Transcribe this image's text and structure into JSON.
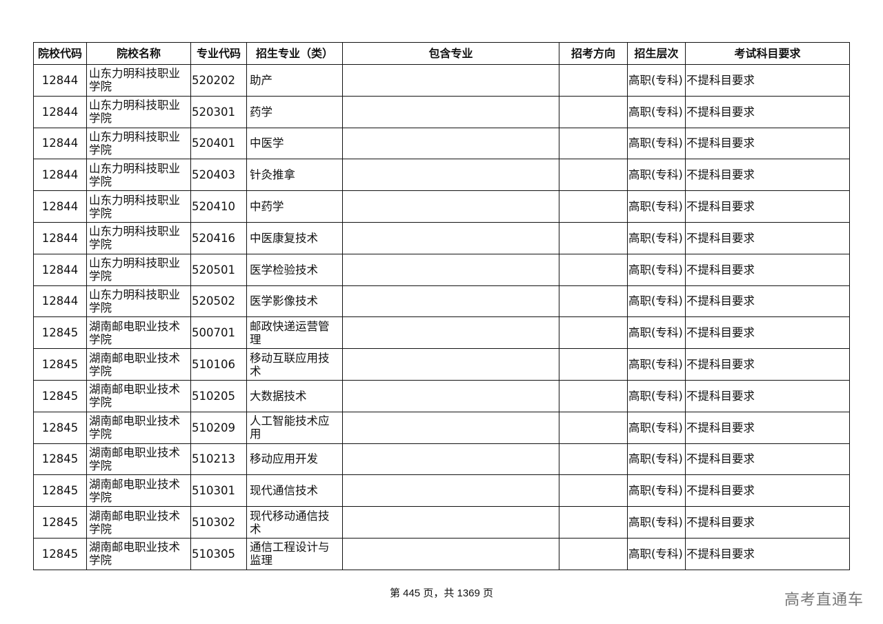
{
  "table": {
    "headers": [
      "院校代码",
      "院校名称",
      "专业代码",
      "招生专业（类）",
      "包含专业",
      "招考方向",
      "招生层次",
      "考试科目要求"
    ],
    "rows": [
      [
        "12844",
        "山东力明科技职业学院",
        "520202",
        "助产",
        "",
        "",
        "高职(专科)",
        "不提科目要求"
      ],
      [
        "12844",
        "山东力明科技职业学院",
        "520301",
        "药学",
        "",
        "",
        "高职(专科)",
        "不提科目要求"
      ],
      [
        "12844",
        "山东力明科技职业学院",
        "520401",
        "中医学",
        "",
        "",
        "高职(专科)",
        "不提科目要求"
      ],
      [
        "12844",
        "山东力明科技职业学院",
        "520403",
        "针灸推拿",
        "",
        "",
        "高职(专科)",
        "不提科目要求"
      ],
      [
        "12844",
        "山东力明科技职业学院",
        "520410",
        "中药学",
        "",
        "",
        "高职(专科)",
        "不提科目要求"
      ],
      [
        "12844",
        "山东力明科技职业学院",
        "520416",
        "中医康复技术",
        "",
        "",
        "高职(专科)",
        "不提科目要求"
      ],
      [
        "12844",
        "山东力明科技职业学院",
        "520501",
        "医学检验技术",
        "",
        "",
        "高职(专科)",
        "不提科目要求"
      ],
      [
        "12844",
        "山东力明科技职业学院",
        "520502",
        "医学影像技术",
        "",
        "",
        "高职(专科)",
        "不提科目要求"
      ],
      [
        "12845",
        "湖南邮电职业技术学院",
        "500701",
        "邮政快递运营管理",
        "",
        "",
        "高职(专科)",
        "不提科目要求"
      ],
      [
        "12845",
        "湖南邮电职业技术学院",
        "510106",
        "移动互联应用技术",
        "",
        "",
        "高职(专科)",
        "不提科目要求"
      ],
      [
        "12845",
        "湖南邮电职业技术学院",
        "510205",
        "大数据技术",
        "",
        "",
        "高职(专科)",
        "不提科目要求"
      ],
      [
        "12845",
        "湖南邮电职业技术学院",
        "510209",
        "人工智能技术应用",
        "",
        "",
        "高职(专科)",
        "不提科目要求"
      ],
      [
        "12845",
        "湖南邮电职业技术学院",
        "510213",
        "移动应用开发",
        "",
        "",
        "高职(专科)",
        "不提科目要求"
      ],
      [
        "12845",
        "湖南邮电职业技术学院",
        "510301",
        "现代通信技术",
        "",
        "",
        "高职(专科)",
        "不提科目要求"
      ],
      [
        "12845",
        "湖南邮电职业技术学院",
        "510302",
        "现代移动通信技术",
        "",
        "",
        "高职(专科)",
        "不提科目要求"
      ],
      [
        "12845",
        "湖南邮电职业技术学院",
        "510305",
        "通信工程设计与监理",
        "",
        "",
        "高职(专科)",
        "不提科目要求"
      ]
    ]
  },
  "footer": {
    "page_text": "第 445 页，共 1369 页"
  },
  "watermark": "高考直通车"
}
